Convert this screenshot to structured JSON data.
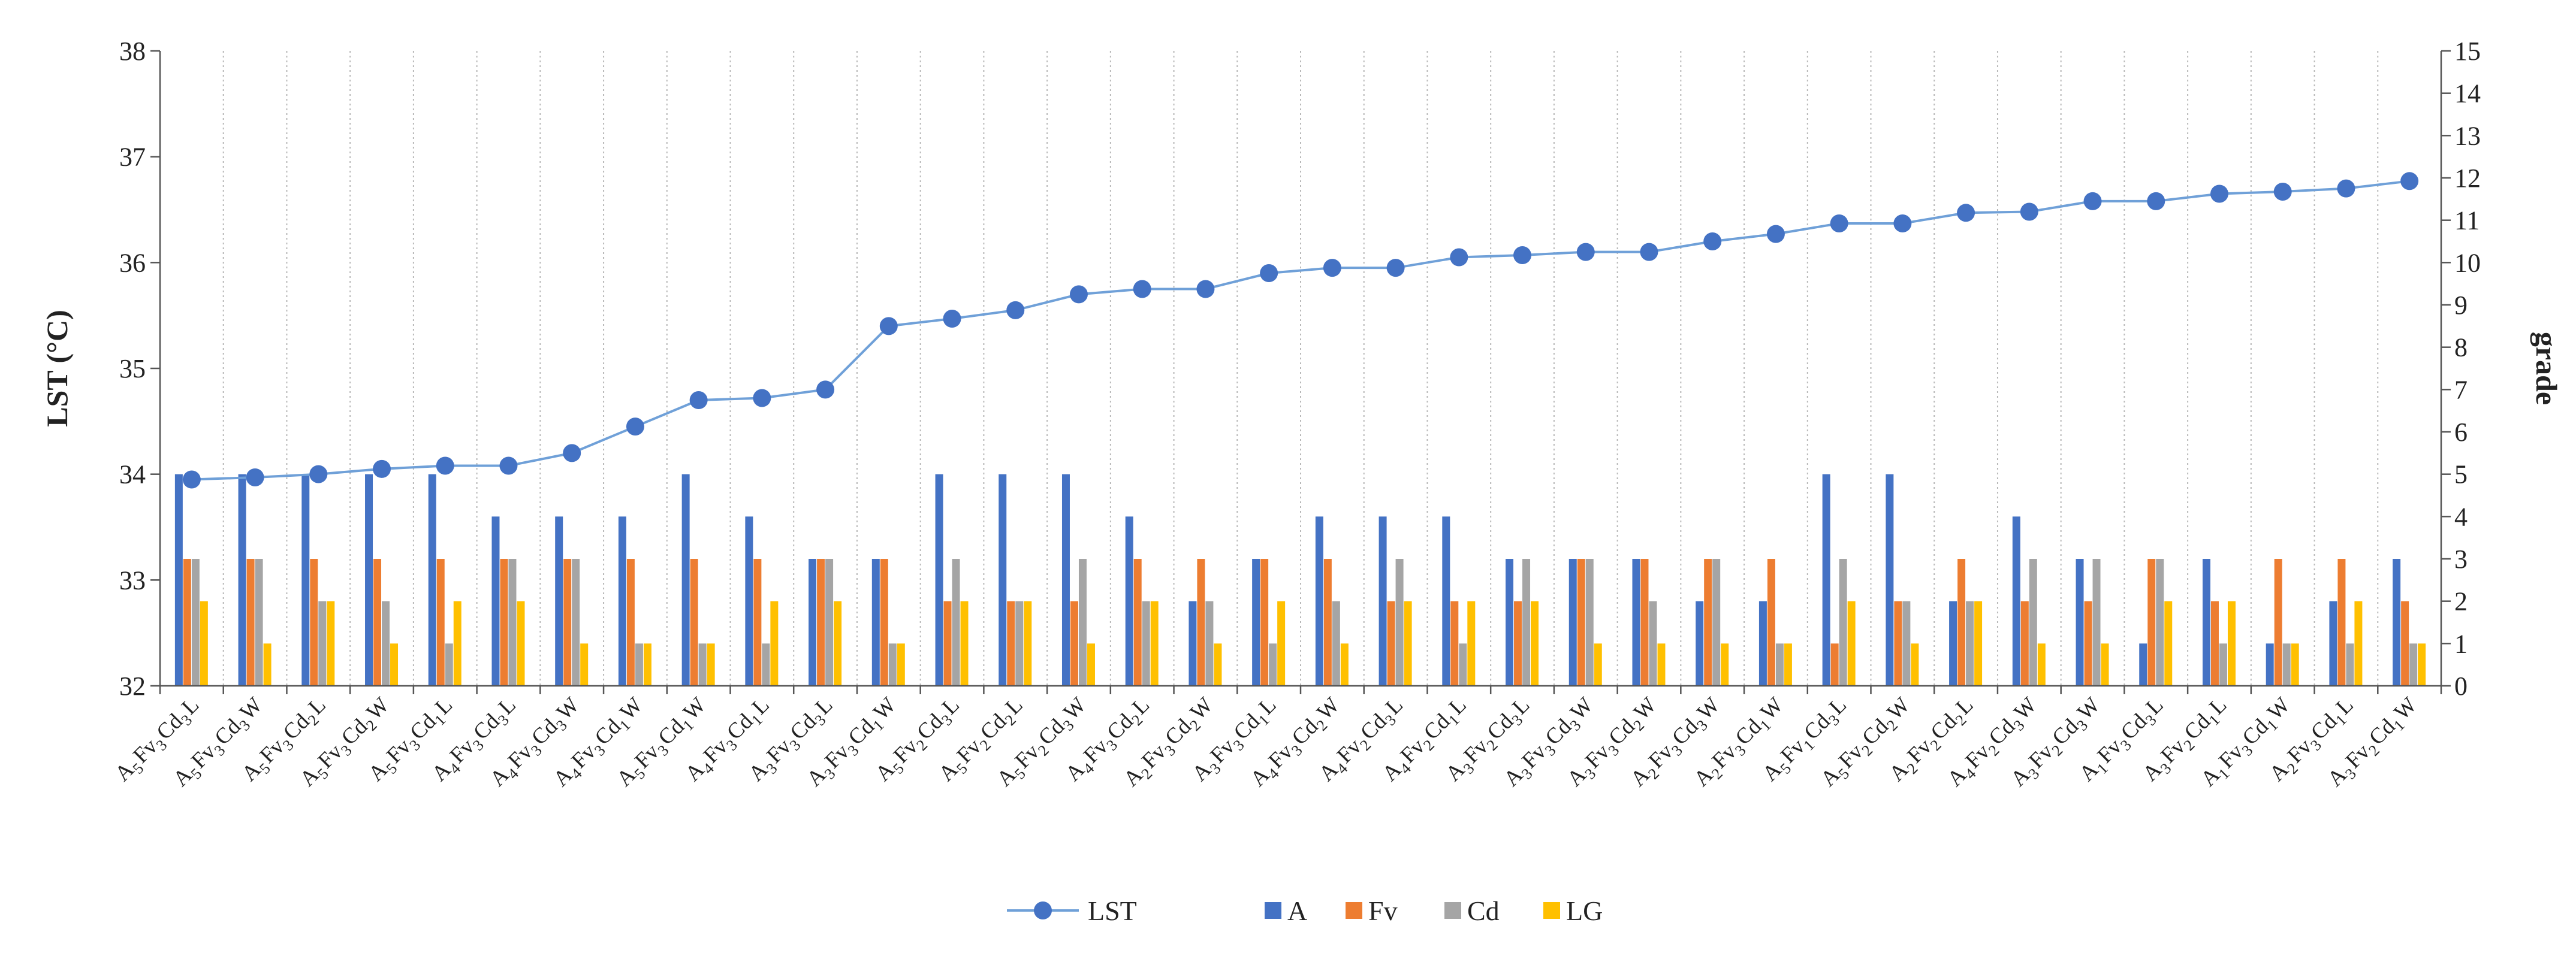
{
  "chart_data": {
    "type": "bar+line",
    "title": "",
    "ylabel": "LST (°C)",
    "y2label": "grade",
    "ylim": [
      32,
      38
    ],
    "y2lim": [
      0,
      15
    ],
    "yticks": [
      32,
      33,
      34,
      35,
      36,
      37,
      38
    ],
    "y2ticks": [
      0,
      1,
      2,
      3,
      4,
      5,
      6,
      7,
      8,
      9,
      10,
      11,
      12,
      13,
      14,
      15
    ],
    "categories": [
      [
        {
          "t": "A",
          "s": "5"
        },
        {
          "t": "Fv",
          "s": "3"
        },
        {
          "t": "Cd",
          "s": "3"
        },
        {
          "t": "L",
          "s": ""
        }
      ],
      [
        {
          "t": "A",
          "s": "5"
        },
        {
          "t": "Fv",
          "s": "3"
        },
        {
          "t": "Cd",
          "s": "3"
        },
        {
          "t": "W",
          "s": ""
        }
      ],
      [
        {
          "t": "A",
          "s": "5"
        },
        {
          "t": "Fv",
          "s": "3"
        },
        {
          "t": "Cd",
          "s": "2"
        },
        {
          "t": "L",
          "s": ""
        }
      ],
      [
        {
          "t": "A",
          "s": "5"
        },
        {
          "t": "Fv",
          "s": "3"
        },
        {
          "t": "Cd",
          "s": "2"
        },
        {
          "t": "W",
          "s": ""
        }
      ],
      [
        {
          "t": "A",
          "s": "5"
        },
        {
          "t": "Fv",
          "s": "3"
        },
        {
          "t": "Cd",
          "s": "1"
        },
        {
          "t": "L",
          "s": ""
        }
      ],
      [
        {
          "t": "A",
          "s": "4"
        },
        {
          "t": "Fv",
          "s": "3"
        },
        {
          "t": "Cd",
          "s": "3"
        },
        {
          "t": "L",
          "s": ""
        }
      ],
      [
        {
          "t": "A",
          "s": "4"
        },
        {
          "t": "Fv",
          "s": "3"
        },
        {
          "t": "Cd",
          "s": "3"
        },
        {
          "t": "W",
          "s": ""
        }
      ],
      [
        {
          "t": "A",
          "s": "4"
        },
        {
          "t": "Fv",
          "s": "3"
        },
        {
          "t": "Cd",
          "s": "1"
        },
        {
          "t": "W",
          "s": ""
        }
      ],
      [
        {
          "t": "A",
          "s": "5"
        },
        {
          "t": "Fv",
          "s": "3"
        },
        {
          "t": "Cd",
          "s": "1"
        },
        {
          "t": "W",
          "s": ""
        }
      ],
      [
        {
          "t": "A",
          "s": "4"
        },
        {
          "t": "Fv",
          "s": "3"
        },
        {
          "t": "Cd",
          "s": "1"
        },
        {
          "t": "L",
          "s": ""
        }
      ],
      [
        {
          "t": "A",
          "s": "3"
        },
        {
          "t": "Fv",
          "s": "3"
        },
        {
          "t": "Cd",
          "s": "3"
        },
        {
          "t": "L",
          "s": ""
        }
      ],
      [
        {
          "t": "A",
          "s": "3"
        },
        {
          "t": "Fv",
          "s": "3"
        },
        {
          "t": "Cd",
          "s": "1"
        },
        {
          "t": "W",
          "s": ""
        }
      ],
      [
        {
          "t": "A",
          "s": "5"
        },
        {
          "t": "Fv",
          "s": "2"
        },
        {
          "t": "Cd",
          "s": "3"
        },
        {
          "t": "L",
          "s": ""
        }
      ],
      [
        {
          "t": "A",
          "s": "5"
        },
        {
          "t": "Fv",
          "s": "2"
        },
        {
          "t": "Cd",
          "s": "2"
        },
        {
          "t": "L",
          "s": ""
        }
      ],
      [
        {
          "t": "A",
          "s": "5"
        },
        {
          "t": "Fv",
          "s": "2"
        },
        {
          "t": "Cd",
          "s": "3"
        },
        {
          "t": "W",
          "s": ""
        }
      ],
      [
        {
          "t": "A",
          "s": "4"
        },
        {
          "t": "Fv",
          "s": "3"
        },
        {
          "t": "Cd",
          "s": "2"
        },
        {
          "t": "L",
          "s": ""
        }
      ],
      [
        {
          "t": "A",
          "s": "2"
        },
        {
          "t": "Fv",
          "s": "3"
        },
        {
          "t": "Cd",
          "s": "2"
        },
        {
          "t": "W",
          "s": ""
        }
      ],
      [
        {
          "t": "A",
          "s": "3"
        },
        {
          "t": "Fv",
          "s": "3"
        },
        {
          "t": "Cd",
          "s": "1"
        },
        {
          "t": "L",
          "s": ""
        }
      ],
      [
        {
          "t": "A",
          "s": "4"
        },
        {
          "t": "Fv",
          "s": "3"
        },
        {
          "t": "Cd",
          "s": "2"
        },
        {
          "t": "W",
          "s": ""
        }
      ],
      [
        {
          "t": "A",
          "s": "4"
        },
        {
          "t": "Fv",
          "s": "2"
        },
        {
          "t": "Cd",
          "s": "3"
        },
        {
          "t": "L",
          "s": ""
        }
      ],
      [
        {
          "t": "A",
          "s": "4"
        },
        {
          "t": "Fv",
          "s": "2"
        },
        {
          "t": "Cd",
          "s": "1"
        },
        {
          "t": "L",
          "s": ""
        }
      ],
      [
        {
          "t": "A",
          "s": "3"
        },
        {
          "t": "Fv",
          "s": "2"
        },
        {
          "t": "Cd",
          "s": "3"
        },
        {
          "t": "L",
          "s": ""
        }
      ],
      [
        {
          "t": "A",
          "s": "3"
        },
        {
          "t": "Fv",
          "s": "3"
        },
        {
          "t": "Cd",
          "s": "3"
        },
        {
          "t": "W",
          "s": ""
        }
      ],
      [
        {
          "t": "A",
          "s": "3"
        },
        {
          "t": "Fv",
          "s": "3"
        },
        {
          "t": "Cd",
          "s": "2"
        },
        {
          "t": "W",
          "s": ""
        }
      ],
      [
        {
          "t": "A",
          "s": "2"
        },
        {
          "t": "Fv",
          "s": "3"
        },
        {
          "t": "Cd",
          "s": "3"
        },
        {
          "t": "W",
          "s": ""
        }
      ],
      [
        {
          "t": "A",
          "s": "2"
        },
        {
          "t": "Fv",
          "s": "3"
        },
        {
          "t": "Cd",
          "s": "1"
        },
        {
          "t": "W",
          "s": ""
        }
      ],
      [
        {
          "t": "A",
          "s": "5"
        },
        {
          "t": "Fv",
          "s": "1"
        },
        {
          "t": "Cd",
          "s": "3"
        },
        {
          "t": "L",
          "s": ""
        }
      ],
      [
        {
          "t": "A",
          "s": "5"
        },
        {
          "t": "Fv",
          "s": "2"
        },
        {
          "t": "Cd",
          "s": "2"
        },
        {
          "t": "W",
          "s": ""
        }
      ],
      [
        {
          "t": "A",
          "s": "2"
        },
        {
          "t": "Fv",
          "s": "2"
        },
        {
          "t": "Cd",
          "s": "2"
        },
        {
          "t": "L",
          "s": ""
        }
      ],
      [
        {
          "t": "A",
          "s": "4"
        },
        {
          "t": "Fv",
          "s": "2"
        },
        {
          "t": "Cd",
          "s": "3"
        },
        {
          "t": "W",
          "s": ""
        }
      ],
      [
        {
          "t": "A",
          "s": "3"
        },
        {
          "t": "Fv",
          "s": "2"
        },
        {
          "t": "Cd",
          "s": "3"
        },
        {
          "t": "W",
          "s": ""
        }
      ],
      [
        {
          "t": "A",
          "s": "1"
        },
        {
          "t": "Fv",
          "s": "3"
        },
        {
          "t": "Cd",
          "s": "3"
        },
        {
          "t": "L",
          "s": ""
        }
      ],
      [
        {
          "t": "A",
          "s": "3"
        },
        {
          "t": "Fv",
          "s": "2"
        },
        {
          "t": "Cd",
          "s": "1"
        },
        {
          "t": "L",
          "s": ""
        }
      ],
      [
        {
          "t": "A",
          "s": "1"
        },
        {
          "t": "Fv",
          "s": "3"
        },
        {
          "t": "Cd",
          "s": "1"
        },
        {
          "t": "W",
          "s": ""
        }
      ],
      [
        {
          "t": "A",
          "s": "2"
        },
        {
          "t": "Fv",
          "s": "3"
        },
        {
          "t": "Cd",
          "s": "1"
        },
        {
          "t": "L",
          "s": ""
        }
      ],
      [
        {
          "t": "A",
          "s": "3"
        },
        {
          "t": "Fv",
          "s": "2"
        },
        {
          "t": "Cd",
          "s": "1"
        },
        {
          "t": "W",
          "s": ""
        }
      ]
    ],
    "line_series": {
      "name": "LST",
      "axis": "left",
      "color": "#4472C4",
      "values": [
        33.95,
        33.97,
        34.0,
        34.05,
        34.08,
        34.08,
        34.2,
        34.45,
        34.7,
        34.72,
        34.8,
        35.4,
        35.47,
        35.55,
        35.7,
        35.75,
        35.75,
        35.9,
        35.95,
        35.95,
        36.05,
        36.07,
        36.1,
        36.1,
        36.2,
        36.27,
        36.37,
        36.37,
        36.47,
        36.48,
        36.58,
        36.58,
        36.65,
        36.67,
        36.7,
        36.77
      ]
    },
    "bar_series": [
      {
        "name": "A",
        "axis": "right",
        "color": "#4472C4",
        "values": [
          5,
          5,
          5,
          5,
          5,
          4,
          4,
          4,
          5,
          4,
          3,
          3,
          5,
          5,
          5,
          4,
          2,
          3,
          4,
          4,
          4,
          3,
          3,
          3,
          2,
          2,
          5,
          5,
          2,
          4,
          3,
          1,
          3,
          1,
          2,
          3
        ]
      },
      {
        "name": "Fv",
        "axis": "right",
        "color": "#ED7D31",
        "values": [
          3,
          3,
          3,
          3,
          3,
          3,
          3,
          3,
          3,
          3,
          3,
          3,
          2,
          2,
          2,
          3,
          3,
          3,
          3,
          2,
          2,
          2,
          3,
          3,
          3,
          3,
          1,
          2,
          3,
          2,
          2,
          3,
          2,
          3,
          3,
          2
        ]
      },
      {
        "name": "Cd",
        "axis": "right",
        "color": "#A5A5A5",
        "values": [
          3,
          3,
          2,
          2,
          1,
          3,
          3,
          1,
          1,
          1,
          3,
          1,
          3,
          2,
          3,
          2,
          2,
          1,
          2,
          3,
          1,
          3,
          3,
          2,
          3,
          1,
          3,
          2,
          2,
          3,
          3,
          3,
          1,
          1,
          1,
          1
        ]
      },
      {
        "name": "LG",
        "axis": "right",
        "color": "#FFC000",
        "values": [
          2,
          1,
          2,
          1,
          2,
          2,
          1,
          1,
          1,
          2,
          2,
          1,
          2,
          2,
          1,
          2,
          1,
          2,
          1,
          2,
          2,
          2,
          1,
          1,
          1,
          1,
          2,
          1,
          2,
          1,
          1,
          2,
          2,
          1,
          2,
          1
        ]
      }
    ],
    "legend": [
      "LST",
      "A",
      "Fv",
      "Cd",
      "LG"
    ],
    "legend_position": "bottom-center"
  }
}
